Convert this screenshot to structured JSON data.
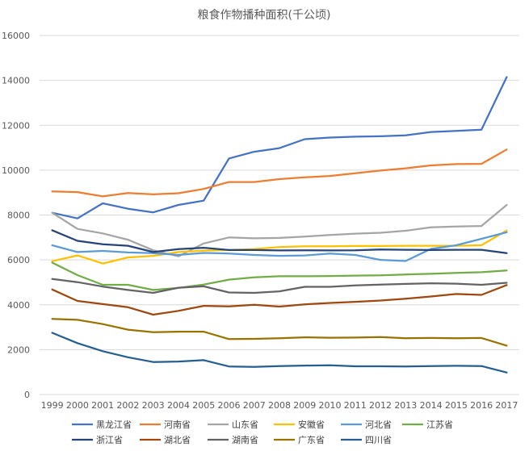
{
  "chart_data": {
    "type": "line",
    "title": "粮食作物播种面积(千公顷)",
    "xlabel": "",
    "ylabel": "",
    "ylim": [
      0,
      16000
    ],
    "yticks": [
      0,
      2000,
      4000,
      6000,
      8000,
      10000,
      12000,
      14000,
      16000
    ],
    "grid": true,
    "legend_position": "bottom",
    "categories": [
      "1999",
      "2000",
      "2001",
      "2002",
      "2003",
      "2004",
      "2005",
      "2006",
      "2007",
      "2008",
      "2009",
      "2010",
      "2011",
      "2012",
      "2013",
      "2014",
      "2015",
      "2016",
      "2017"
    ],
    "series": [
      {
        "name": "黑龙江省",
        "color": "#4472c4",
        "values": [
          8100,
          7850,
          8520,
          8280,
          8120,
          8450,
          8640,
          10520,
          10820,
          10980,
          11380,
          11450,
          11490,
          11510,
          11550,
          11700,
          11750,
          11800,
          14150
        ]
      },
      {
        "name": "河南省",
        "color": "#ed7d31",
        "values": [
          9050,
          9020,
          8830,
          8980,
          8920,
          8970,
          9160,
          9470,
          9470,
          9600,
          9680,
          9740,
          9860,
          9980,
          10080,
          10210,
          10270,
          10280,
          10920
        ]
      },
      {
        "name": "山东省",
        "color": "#a5a5a5",
        "values": [
          8100,
          7380,
          7180,
          6900,
          6430,
          6160,
          6730,
          7000,
          6960,
          6980,
          7040,
          7110,
          7170,
          7210,
          7300,
          7450,
          7490,
          7510,
          8450
        ]
      },
      {
        "name": "安徽省",
        "color": "#ffc000",
        "values": [
          5940,
          6200,
          5840,
          6110,
          6180,
          6350,
          6410,
          6440,
          6480,
          6570,
          6610,
          6610,
          6620,
          6620,
          6630,
          6630,
          6630,
          6650,
          7310
        ]
      },
      {
        "name": "河北省",
        "color": "#5b9bd5",
        "values": [
          6650,
          6350,
          6400,
          6330,
          6300,
          6220,
          6310,
          6280,
          6220,
          6180,
          6200,
          6280,
          6220,
          6000,
          5950,
          6490,
          6650,
          6940,
          7230
        ]
      },
      {
        "name": "江苏省",
        "color": "#70ad47",
        "values": [
          5880,
          5320,
          4890,
          4890,
          4660,
          4750,
          4900,
          5120,
          5220,
          5270,
          5270,
          5280,
          5300,
          5310,
          5350,
          5380,
          5420,
          5450,
          5530
        ]
      },
      {
        "name": "浙江省",
        "color": "#264478",
        "values": [
          7320,
          6850,
          6700,
          6630,
          6350,
          6480,
          6540,
          6440,
          6440,
          6420,
          6430,
          6420,
          6430,
          6460,
          6450,
          6440,
          6450,
          6450,
          6300
        ]
      },
      {
        "name": "湖北省",
        "color": "#9e480e",
        "values": [
          4680,
          4170,
          4030,
          3890,
          3560,
          3730,
          3950,
          3930,
          4000,
          3920,
          4020,
          4080,
          4130,
          4190,
          4270,
          4370,
          4480,
          4440,
          4880
        ]
      },
      {
        "name": "湖南省",
        "color": "#636363",
        "values": [
          5150,
          5010,
          4810,
          4660,
          4530,
          4760,
          4820,
          4550,
          4530,
          4600,
          4800,
          4800,
          4860,
          4900,
          4930,
          4960,
          4940,
          4890,
          4980
        ]
      },
      {
        "name": "广东省",
        "color": "#997300",
        "values": [
          3370,
          3330,
          3140,
          2890,
          2780,
          2800,
          2800,
          2470,
          2480,
          2510,
          2550,
          2530,
          2540,
          2560,
          2510,
          2520,
          2510,
          2520,
          2180
        ]
      },
      {
        "name": "四川省",
        "color": "#255e91",
        "values": [
          2750,
          2290,
          1930,
          1660,
          1450,
          1470,
          1530,
          1250,
          1230,
          1270,
          1290,
          1300,
          1260,
          1260,
          1250,
          1270,
          1280,
          1270,
          980
        ]
      }
    ]
  }
}
